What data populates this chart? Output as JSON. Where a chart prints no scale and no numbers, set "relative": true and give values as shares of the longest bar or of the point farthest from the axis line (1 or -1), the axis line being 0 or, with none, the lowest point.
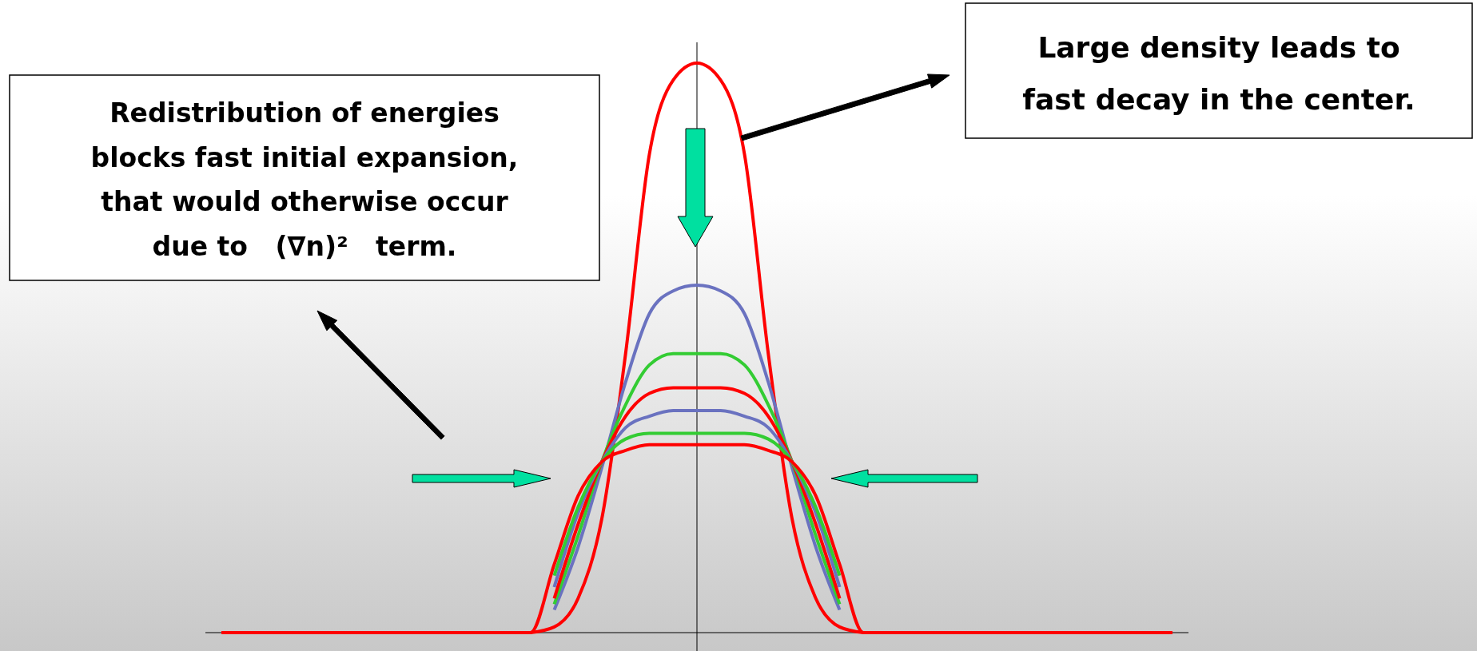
{
  "chart_data": {
    "type": "line",
    "relative": true,
    "categories": [
      null,
      null,
      null,
      null,
      null,
      null,
      null,
      null,
      null,
      null,
      null,
      null,
      null,
      null,
      null,
      null,
      null,
      null,
      null,
      null,
      null,
      null,
      null,
      null,
      null,
      null,
      null,
      null,
      null,
      null,
      null,
      null,
      null,
      null,
      null,
      null,
      null,
      null,
      null,
      null,
      null
    ],
    "series": [
      {
        "color": "#ff0000",
        "values": [
          null,
          null,
          null,
          null,
          null,
          null,
          null,
          null,
          null,
          null,
          null,
          null,
          null,
          0,
          0.01,
          0.06,
          0.2,
          0.49,
          0.84,
          0.97,
          1,
          0.97,
          0.84,
          0.49,
          0.2,
          0.06,
          0.01,
          0,
          null,
          null,
          null,
          null,
          null,
          null,
          null,
          null,
          null,
          null,
          null,
          null,
          null
        ]
      },
      {
        "color": "#6a72c0",
        "values": [
          null,
          null,
          null,
          null,
          null,
          null,
          null,
          null,
          null,
          null,
          null,
          null,
          null,
          null,
          0.04,
          0.15,
          0.29,
          0.44,
          0.56,
          0.6,
          0.61,
          0.6,
          0.56,
          0.44,
          0.29,
          0.15,
          0.04,
          null,
          null,
          null,
          null,
          null,
          null,
          null,
          null,
          null,
          null,
          null,
          null,
          null,
          null
        ]
      },
      {
        "color": "#33cc33",
        "values": [
          null,
          null,
          null,
          null,
          null,
          null,
          null,
          null,
          null,
          null,
          null,
          null,
          null,
          null,
          0.05,
          0.17,
          0.3,
          0.4,
          0.47,
          0.49,
          0.49,
          0.49,
          0.47,
          0.4,
          0.3,
          0.17,
          0.05,
          null,
          null,
          null,
          null,
          null,
          null,
          null,
          null,
          null,
          null,
          null,
          null,
          null,
          null
        ]
      },
      {
        "color": "#ff0000",
        "values": [
          null,
          null,
          null,
          null,
          null,
          null,
          null,
          null,
          null,
          null,
          null,
          null,
          null,
          null,
          0.06,
          0.19,
          0.3,
          0.38,
          0.42,
          0.43,
          0.43,
          0.43,
          0.42,
          0.38,
          0.3,
          0.19,
          0.06,
          null,
          null,
          null,
          null,
          null,
          null,
          null,
          null,
          null,
          null,
          null,
          null,
          null,
          null
        ]
      },
      {
        "color": "#6a72c0",
        "values": [
          null,
          null,
          null,
          null,
          null,
          null,
          null,
          null,
          null,
          null,
          null,
          null,
          null,
          null,
          0.08,
          0.21,
          0.3,
          0.36,
          0.38,
          0.39,
          0.39,
          0.39,
          0.38,
          0.36,
          0.3,
          0.21,
          0.08,
          null,
          null,
          null,
          null,
          null,
          null,
          null,
          null,
          null,
          null,
          null,
          null,
          null,
          null
        ]
      },
      {
        "color": "#33cc33",
        "values": [
          null,
          null,
          null,
          null,
          null,
          null,
          null,
          null,
          null,
          null,
          null,
          null,
          null,
          null,
          0.1,
          0.22,
          0.3,
          0.34,
          0.35,
          0.35,
          0.35,
          0.35,
          0.35,
          0.34,
          0.3,
          0.22,
          0.1,
          null,
          null,
          null,
          null,
          null,
          null,
          null,
          null,
          null,
          null,
          null,
          null,
          null,
          null
        ]
      },
      {
        "color": "#ff0000",
        "values": [
          0,
          0,
          0,
          0,
          0,
          0,
          0,
          0,
          0,
          0,
          0,
          0,
          0,
          0,
          0.12,
          0.24,
          0.3,
          0.32,
          0.33,
          0.33,
          0.33,
          0.33,
          0.33,
          0.32,
          0.3,
          0.24,
          0.12,
          0,
          0,
          0,
          0,
          0,
          0,
          0,
          0,
          0,
          0,
          0,
          0,
          0,
          0
        ]
      }
    ],
    "annotations": [
      "Redistribution of energies\nblocks fast initial expansion,\nthat would otherwise occur\ndue to   (∇n)²   term.",
      "Large density leads to\nfast decay in the center."
    ]
  }
}
